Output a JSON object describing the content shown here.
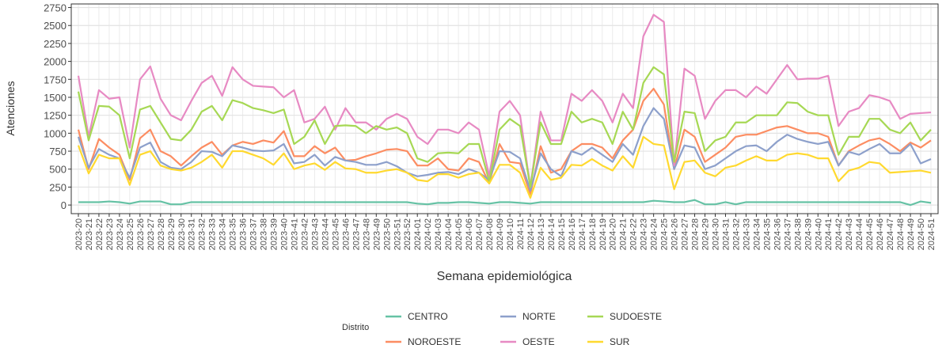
{
  "chart_data": {
    "type": "line",
    "x_label": "Semana epidemiológica",
    "y_label": "Atenciones",
    "legend_title": "Distrito",
    "categories": [
      "2023-20",
      "2023-21",
      "2023-22",
      "2023-23",
      "2023-24",
      "2023-25",
      "2023-26",
      "2023-27",
      "2023-28",
      "2023-29",
      "2023-30",
      "2023-31",
      "2023-32",
      "2023-33",
      "2023-34",
      "2023-35",
      "2023-36",
      "2023-37",
      "2023-38",
      "2023-39",
      "2023-40",
      "2023-41",
      "2023-42",
      "2023-43",
      "2023-44",
      "2023-45",
      "2023-46",
      "2023-47",
      "2023-48",
      "2023-49",
      "2023-50",
      "2023-51",
      "2023-52",
      "2024-01",
      "2024-02",
      "2024-03",
      "2024-04",
      "2024-05",
      "2024-06",
      "2024-07",
      "2024-08",
      "2024-09",
      "2024-10",
      "2024-11",
      "2024-12",
      "2024-13",
      "2024-14",
      "2024-15",
      "2024-16",
      "2024-17",
      "2024-18",
      "2024-19",
      "2024-20",
      "2024-21",
      "2024-22",
      "2024-23",
      "2024-24",
      "2024-25",
      "2024-26",
      "2024-27",
      "2024-28",
      "2024-29",
      "2024-30",
      "2024-31",
      "2024-32",
      "2024-33",
      "2024-34",
      "2024-35",
      "2024-36",
      "2024-37",
      "2024-38",
      "2024-39",
      "2024-40",
      "2024-41",
      "2024-42",
      "2024-43",
      "2024-44",
      "2024-45",
      "2024-46",
      "2024-47",
      "2024-48",
      "2024-49",
      "2024-50",
      "2024-51"
    ],
    "series": [
      {
        "name": "CENTRO",
        "color": "#66c2a5",
        "values": [
          40,
          40,
          40,
          50,
          40,
          20,
          50,
          50,
          50,
          10,
          10,
          40,
          40,
          40,
          40,
          40,
          40,
          40,
          40,
          40,
          40,
          40,
          40,
          40,
          40,
          40,
          40,
          40,
          40,
          40,
          40,
          40,
          40,
          20,
          10,
          30,
          30,
          40,
          40,
          30,
          20,
          40,
          40,
          30,
          20,
          40,
          40,
          40,
          40,
          40,
          40,
          40,
          40,
          40,
          40,
          40,
          60,
          50,
          40,
          40,
          70,
          10,
          10,
          40,
          10,
          40,
          40,
          40,
          40,
          40,
          40,
          40,
          40,
          40,
          40,
          40,
          40,
          40,
          40,
          40,
          40,
          0,
          50,
          30
        ]
      },
      {
        "name": "NOROESTE",
        "color": "#fc8d62",
        "values": [
          1050,
          500,
          920,
          800,
          700,
          350,
          930,
          1050,
          750,
          680,
          550,
          680,
          800,
          880,
          700,
          830,
          880,
          850,
          900,
          870,
          1030,
          680,
          680,
          820,
          720,
          800,
          620,
          630,
          680,
          720,
          770,
          780,
          750,
          550,
          550,
          650,
          500,
          480,
          650,
          600,
          300,
          850,
          600,
          580,
          150,
          820,
          450,
          500,
          750,
          850,
          850,
          800,
          650,
          900,
          1050,
          1450,
          1620,
          1400,
          500,
          1050,
          950,
          600,
          700,
          800,
          950,
          980,
          980,
          1030,
          1080,
          1100,
          1050,
          1000,
          1000,
          950,
          550,
          750,
          830,
          900,
          930,
          850,
          750,
          870,
          800,
          900
        ]
      },
      {
        "name": "NORTE",
        "color": "#8da0cb",
        "values": [
          950,
          520,
          780,
          700,
          650,
          380,
          800,
          870,
          600,
          520,
          500,
          600,
          750,
          740,
          680,
          830,
          800,
          760,
          750,
          760,
          850,
          580,
          600,
          700,
          550,
          670,
          620,
          600,
          560,
          560,
          600,
          540,
          450,
          400,
          420,
          450,
          460,
          430,
          500,
          450,
          350,
          750,
          740,
          650,
          200,
          720,
          500,
          400,
          750,
          700,
          800,
          700,
          600,
          850,
          700,
          1100,
          1350,
          1200,
          500,
          830,
          800,
          500,
          550,
          650,
          750,
          820,
          830,
          750,
          880,
          980,
          920,
          880,
          850,
          880,
          550,
          740,
          700,
          780,
          850,
          720,
          720,
          850,
          580,
          640
        ]
      },
      {
        "name": "OESTE",
        "color": "#e78ac3",
        "values": [
          1800,
          950,
          1600,
          1480,
          1500,
          800,
          1750,
          1930,
          1480,
          1250,
          1180,
          1450,
          1700,
          1800,
          1520,
          1920,
          1750,
          1660,
          1650,
          1640,
          1500,
          1600,
          1150,
          1200,
          1370,
          1050,
          1350,
          1150,
          1150,
          1050,
          1200,
          1270,
          1200,
          950,
          850,
          1050,
          1050,
          1000,
          1150,
          1050,
          400,
          1300,
          1450,
          1250,
          250,
          1300,
          900,
          900,
          1550,
          1450,
          1600,
          1450,
          1150,
          1550,
          1350,
          2350,
          2650,
          2550,
          550,
          1900,
          1800,
          1200,
          1450,
          1600,
          1600,
          1500,
          1650,
          1550,
          1750,
          1950,
          1750,
          1760,
          1760,
          1800,
          1100,
          1300,
          1350,
          1530,
          1500,
          1450,
          1200,
          1270,
          1280,
          1290
        ]
      },
      {
        "name": "SUDOESTE",
        "color": "#a6d854",
        "values": [
          1580,
          900,
          1380,
          1370,
          1250,
          650,
          1330,
          1380,
          1150,
          920,
          900,
          1050,
          1300,
          1380,
          1180,
          1460,
          1420,
          1350,
          1320,
          1280,
          1330,
          850,
          950,
          1180,
          850,
          1100,
          1110,
          1100,
          1000,
          1100,
          1050,
          1080,
          1000,
          650,
          600,
          720,
          730,
          720,
          850,
          850,
          330,
          1050,
          1200,
          1100,
          250,
          1150,
          850,
          850,
          1300,
          1150,
          1200,
          1150,
          850,
          1300,
          1050,
          1700,
          1920,
          1820,
          600,
          1300,
          1280,
          750,
          900,
          950,
          1150,
          1150,
          1250,
          1250,
          1250,
          1430,
          1420,
          1300,
          1250,
          1250,
          700,
          950,
          950,
          1200,
          1200,
          1050,
          1000,
          1150,
          900,
          1050
        ]
      },
      {
        "name": "SUR",
        "color": "#ffd92f",
        "values": [
          830,
          440,
          700,
          650,
          650,
          280,
          700,
          750,
          550,
          500,
          480,
          520,
          600,
          700,
          520,
          750,
          750,
          700,
          650,
          560,
          720,
          500,
          550,
          580,
          490,
          600,
          510,
          500,
          450,
          450,
          480,
          500,
          450,
          350,
          330,
          430,
          430,
          380,
          430,
          450,
          300,
          560,
          560,
          450,
          100,
          520,
          350,
          380,
          560,
          550,
          640,
          550,
          480,
          680,
          520,
          950,
          850,
          830,
          220,
          600,
          620,
          450,
          400,
          520,
          550,
          620,
          680,
          620,
          620,
          700,
          720,
          700,
          650,
          650,
          330,
          480,
          520,
          600,
          580,
          450,
          460,
          470,
          480,
          450
        ]
      }
    ],
    "ylim": [
      -120,
      2800
    ],
    "yticks": [
      0,
      250,
      500,
      750,
      1000,
      1250,
      1500,
      1750,
      2000,
      2250,
      2500,
      2750
    ],
    "grid": true
  }
}
